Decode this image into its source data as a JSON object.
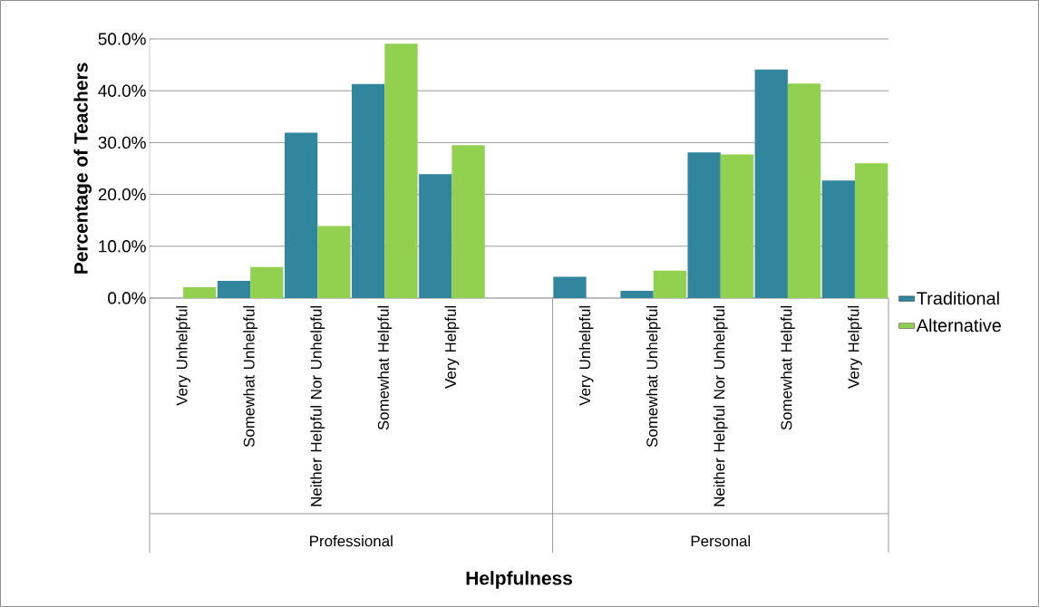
{
  "chart_data": {
    "type": "bar",
    "xlabel": "Helpfulness",
    "ylabel": "Percentage of Teachers",
    "categories": [
      "Very Unhelpful",
      "Somewhat Unhelpful",
      "Neither Helpful Nor Unhelpful",
      "Somewhat Helpful",
      "Very Helpful",
      null,
      "Very Unhelpful",
      "Somewhat Unhelpful",
      "Neither Helpful Nor Unhelpful",
      "Somewhat Helpful",
      "Very Helpful"
    ],
    "series": [
      {
        "name": "Traditional",
        "color": "#31859c",
        "values": [
          null,
          3.3,
          31.9,
          41.3,
          23.9,
          null,
          4.1,
          1.4,
          28.1,
          44.1,
          22.7
        ]
      },
      {
        "name": "Alternative",
        "color": "#92d050",
        "values": [
          2.1,
          6.0,
          13.9,
          49.1,
          29.5,
          null,
          null,
          5.3,
          27.7,
          41.4,
          26.0
        ]
      }
    ],
    "annotations": [
      "Professional",
      "Personal"
    ],
    "ylim": [
      0,
      50
    ],
    "yticks": [
      {
        "value": 0,
        "label": "0.0%"
      },
      {
        "value": 10,
        "label": "10.0%"
      },
      {
        "value": 20,
        "label": "20.0%"
      },
      {
        "value": 30,
        "label": "30.0%"
      },
      {
        "value": 40,
        "label": "40.0%"
      },
      {
        "value": 50,
        "label": "50.0%"
      }
    ],
    "grid": "y",
    "legend": "right"
  }
}
